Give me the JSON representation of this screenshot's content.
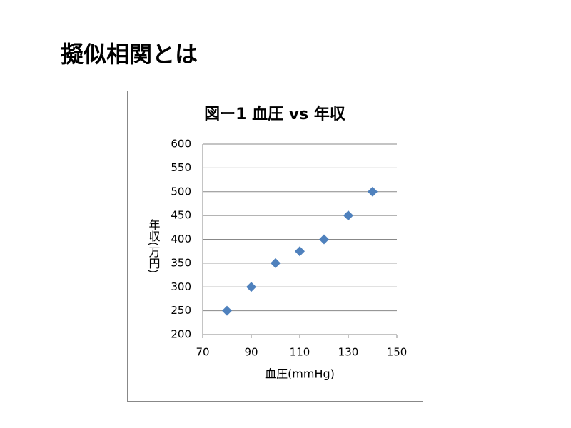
{
  "slide_title": "擬似相関とは",
  "chart_data": {
    "type": "scatter",
    "title": "図ー1 血圧 vs 年収",
    "x_label": "血圧(mmHg)",
    "y_label": "年収(万円)",
    "x": [
      80,
      90,
      100,
      110,
      120,
      130,
      140
    ],
    "values": [
      250,
      300,
      350,
      375,
      400,
      450,
      500
    ],
    "color": "#4f81bd",
    "xlim": [
      70,
      150
    ],
    "xticks": [
      70,
      90,
      110,
      130,
      150
    ],
    "ylim": [
      200,
      600
    ],
    "yticks": [
      200,
      250,
      300,
      350,
      400,
      450,
      500,
      550,
      600
    ],
    "grid": true
  }
}
